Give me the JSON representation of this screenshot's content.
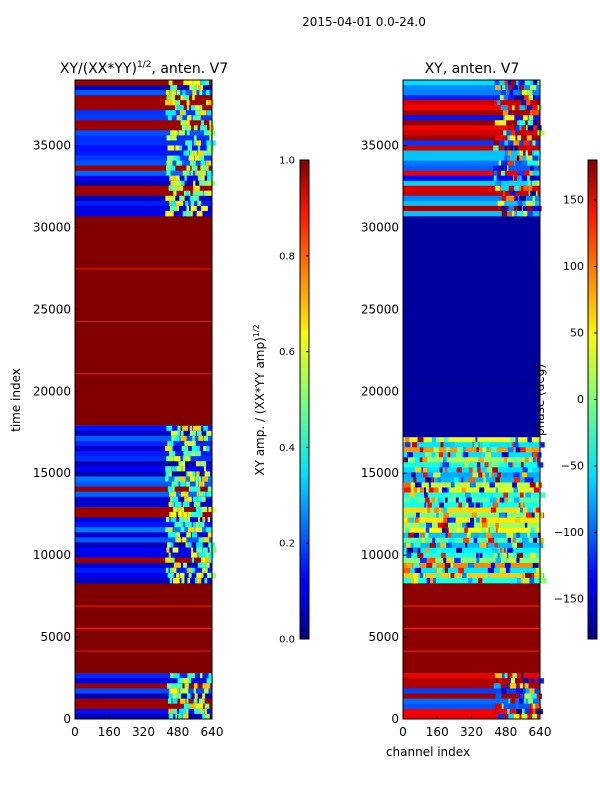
{
  "suptitle": "2015-04-01 0.0-24.0",
  "xlabel": "channel index",
  "chart_data": [
    {
      "type": "heatmap",
      "id": "amp",
      "title": "XY/(XX*YY)^1/2, anten. V7",
      "title_main": "XY/(XX*YY)",
      "title_sup": "1/2",
      "title_rest": ", anten. V7",
      "xlabel": "",
      "ylabel": "time index",
      "xlim": [
        0,
        640
      ],
      "ylim": [
        0,
        39000
      ],
      "xticks": [
        "0",
        "160",
        "320",
        "480",
        "640"
      ],
      "yticks": [
        "0",
        "5000",
        "10000",
        "15000",
        "20000",
        "25000",
        "30000",
        "35000"
      ],
      "colorbar": {
        "label": "XY amp. / (XX*YY amp)^1/2",
        "label_main": "XY amp. / (XX*YY amp)",
        "label_sup": "1/2",
        "range": [
          0.0,
          1.0
        ],
        "ticks": [
          "0.0",
          "0.2",
          "0.4",
          "0.6",
          "0.8",
          "1.0"
        ]
      },
      "regions": [
        {
          "y0": 0,
          "y1": 2800,
          "value": 0.15,
          "pattern": "noisy-band"
        },
        {
          "y0": 2800,
          "y1": 8300,
          "value": 1.0,
          "pattern": "solid"
        },
        {
          "y0": 8300,
          "y1": 17900,
          "value": 0.12,
          "pattern": "noisy-band"
        },
        {
          "y0": 17900,
          "y1": 30700,
          "value": 1.0,
          "pattern": "solid"
        },
        {
          "y0": 30700,
          "y1": 39000,
          "value": 0.12,
          "pattern": "noisy-band"
        }
      ]
    },
    {
      "type": "heatmap",
      "id": "phase",
      "title": "XY, anten. V7",
      "xlabel": "channel index",
      "ylabel": "",
      "xlim": [
        0,
        640
      ],
      "ylim": [
        0,
        39000
      ],
      "xticks": [
        "0",
        "160",
        "320",
        "480",
        "640"
      ],
      "yticks": [
        "0",
        "5000",
        "10000",
        "15000",
        "20000",
        "25000",
        "30000",
        "35000"
      ],
      "colorbar": {
        "label": "phase (deg)",
        "range": [
          -180,
          180
        ],
        "ticks": [
          "−150",
          "−100",
          "−50",
          "0",
          "50",
          "100",
          "150"
        ],
        "tick_values": [
          -150,
          -100,
          -50,
          0,
          50,
          100,
          150
        ]
      },
      "regions": [
        {
          "y0": 0,
          "y1": 2800,
          "value": 100,
          "pattern": "mixed"
        },
        {
          "y0": 2800,
          "y1": 8300,
          "value": 175,
          "pattern": "solid"
        },
        {
          "y0": 8300,
          "y1": 17200,
          "value": -20,
          "pattern": "striped-phase"
        },
        {
          "y0": 17200,
          "y1": 30700,
          "value": -170,
          "pattern": "solid"
        },
        {
          "y0": 30700,
          "y1": 39000,
          "value": 150,
          "pattern": "mixed"
        }
      ]
    }
  ]
}
